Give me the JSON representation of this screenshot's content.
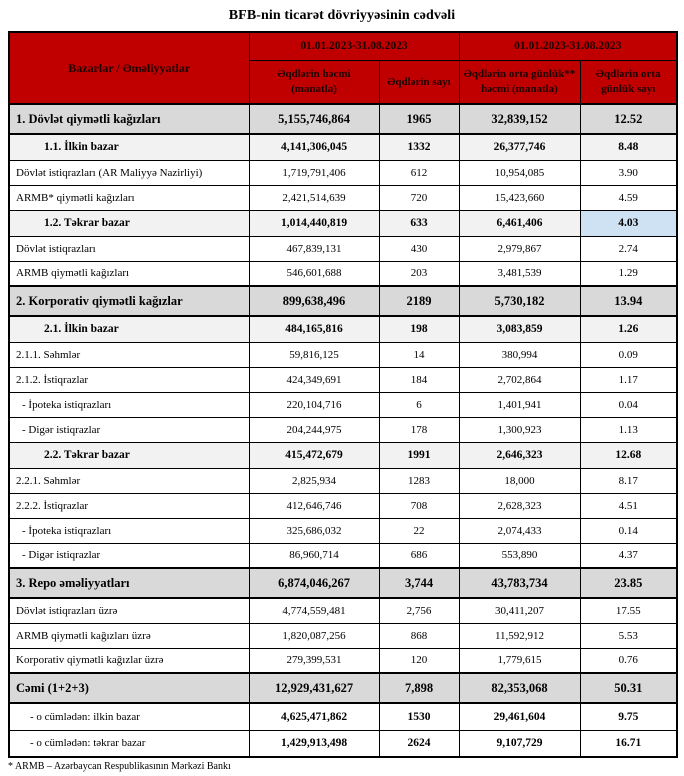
{
  "title": "BFB-nin ticarət dövriyyəsinin cədvəli",
  "footnote": "* ARMB – Azərbaycan Respublikasının Mərkəzi Bankı",
  "colors": {
    "header_bg": "#c00000",
    "header_text": "#1d0000",
    "section_bg": "#d9d9d9",
    "subsection_bg": "#f2f2f2",
    "highlight_bg": "#cfe2f3"
  },
  "table": {
    "header": {
      "corner_label": "Bazarlar / Əməliyyatlar",
      "period1": "01.01.2023-31.08.2023",
      "period2": "01.01.2023-31.08.2023",
      "columns": [
        "Əqdlərin həcmi (manatla)",
        "Əqdlərin sayı",
        "Əqdlərin orta günlük** həcmi (manatla)",
        "Əqdlərin orta günlük sayı"
      ]
    },
    "rows": [
      {
        "label": "1. Dövlət qiymətli kağızları",
        "values": [
          "5,155,746,864",
          "1965",
          "32,839,152",
          "12.52"
        ],
        "style": "section"
      },
      {
        "label": "1.1. İlkin bazar",
        "values": [
          "4,141,306,045",
          "1332",
          "26,377,746",
          "8.48"
        ],
        "style": "subsection"
      },
      {
        "label": "Dövlət istiqrazları (AR Maliyyə Nazirliyi)",
        "values": [
          "1,719,791,406",
          "612",
          "10,954,085",
          "3.90"
        ],
        "style": "detail"
      },
      {
        "label": "ARMB* qiymətli kağızları",
        "values": [
          "2,421,514,639",
          "720",
          "15,423,660",
          "4.59"
        ],
        "style": "detail"
      },
      {
        "label": "1.2. Təkrar bazar",
        "values": [
          "1,014,440,819",
          "633",
          "6,461,406",
          "4.03"
        ],
        "style": "subsection",
        "highlight_last": true
      },
      {
        "label": "Dövlət istiqrazları",
        "values": [
          "467,839,131",
          "430",
          "2,979,867",
          "2.74"
        ],
        "style": "detail"
      },
      {
        "label": "ARMB qiymətli kağızları",
        "values": [
          "546,601,688",
          "203",
          "3,481,539",
          "1.29"
        ],
        "style": "detail"
      },
      {
        "label": "2. Korporativ qiymətli kağızlar",
        "values": [
          "899,638,496",
          "2189",
          "5,730,182",
          "13.94"
        ],
        "style": "section"
      },
      {
        "label": "2.1. İlkin bazar",
        "values": [
          "484,165,816",
          "198",
          "3,083,859",
          "1.26"
        ],
        "style": "subsection"
      },
      {
        "label": "2.1.1. Səhmlər",
        "values": [
          "59,816,125",
          "14",
          "380,994",
          "0.09"
        ],
        "style": "detail"
      },
      {
        "label": "2.1.2. İstiqrazlar",
        "values": [
          "424,349,691",
          "184",
          "2,702,864",
          "1.17"
        ],
        "style": "detail"
      },
      {
        "label": "- İpoteka istiqrazları",
        "values": [
          "220,104,716",
          "6",
          "1,401,941",
          "0.04"
        ],
        "style": "detail detail-dash"
      },
      {
        "label": "- Digər istiqrazlar",
        "values": [
          "204,244,975",
          "178",
          "1,300,923",
          "1.13"
        ],
        "style": "detail detail-dash"
      },
      {
        "label": "2.2. Təkrar bazar",
        "values": [
          "415,472,679",
          "1991",
          "2,646,323",
          "12.68"
        ],
        "style": "subsection"
      },
      {
        "label": "2.2.1. Səhmlər",
        "values": [
          "2,825,934",
          "1283",
          "18,000",
          "8.17"
        ],
        "style": "detail"
      },
      {
        "label": "2.2.2. İstiqrazlar",
        "values": [
          "412,646,746",
          "708",
          "2,628,323",
          "4.51"
        ],
        "style": "detail"
      },
      {
        "label": "- İpoteka istiqrazları",
        "values": [
          "325,686,032",
          "22",
          "2,074,433",
          "0.14"
        ],
        "style": "detail detail-dash"
      },
      {
        "label": "- Digər istiqrazlar",
        "values": [
          "86,960,714",
          "686",
          "553,890",
          "4.37"
        ],
        "style": "detail detail-dash"
      },
      {
        "label": "3. Repo əməliyyatları",
        "values": [
          "6,874,046,267",
          "3,744",
          "43,783,734",
          "23.85"
        ],
        "style": "section"
      },
      {
        "label": "Dövlət istiqrazları üzrə",
        "values": [
          "4,774,559,481",
          "2,756",
          "30,411,207",
          "17.55"
        ],
        "style": "detail"
      },
      {
        "label": "ARMB qiymətli kağızları üzrə",
        "values": [
          "1,820,087,256",
          "868",
          "11,592,912",
          "5.53"
        ],
        "style": "detail"
      },
      {
        "label": "Korporativ qiymətli kağızlar üzrə",
        "values": [
          "279,399,531",
          "120",
          "1,779,615",
          "0.76"
        ],
        "style": "detail"
      },
      {
        "label": "Cəmi (1+2+3)",
        "values": [
          "12,929,431,627",
          "7,898",
          "82,353,068",
          "50.31"
        ],
        "style": "total"
      },
      {
        "label": "- o cümlədən: ilkin bazar",
        "values": [
          "4,625,471,862",
          "1530",
          "29,461,604",
          "9.75"
        ],
        "style": "total-sub"
      },
      {
        "label": "- o cümlədən: təkrar bazar",
        "values": [
          "1,429,913,498",
          "2624",
          "9,107,729",
          "16.71"
        ],
        "style": "total-sub"
      }
    ]
  }
}
